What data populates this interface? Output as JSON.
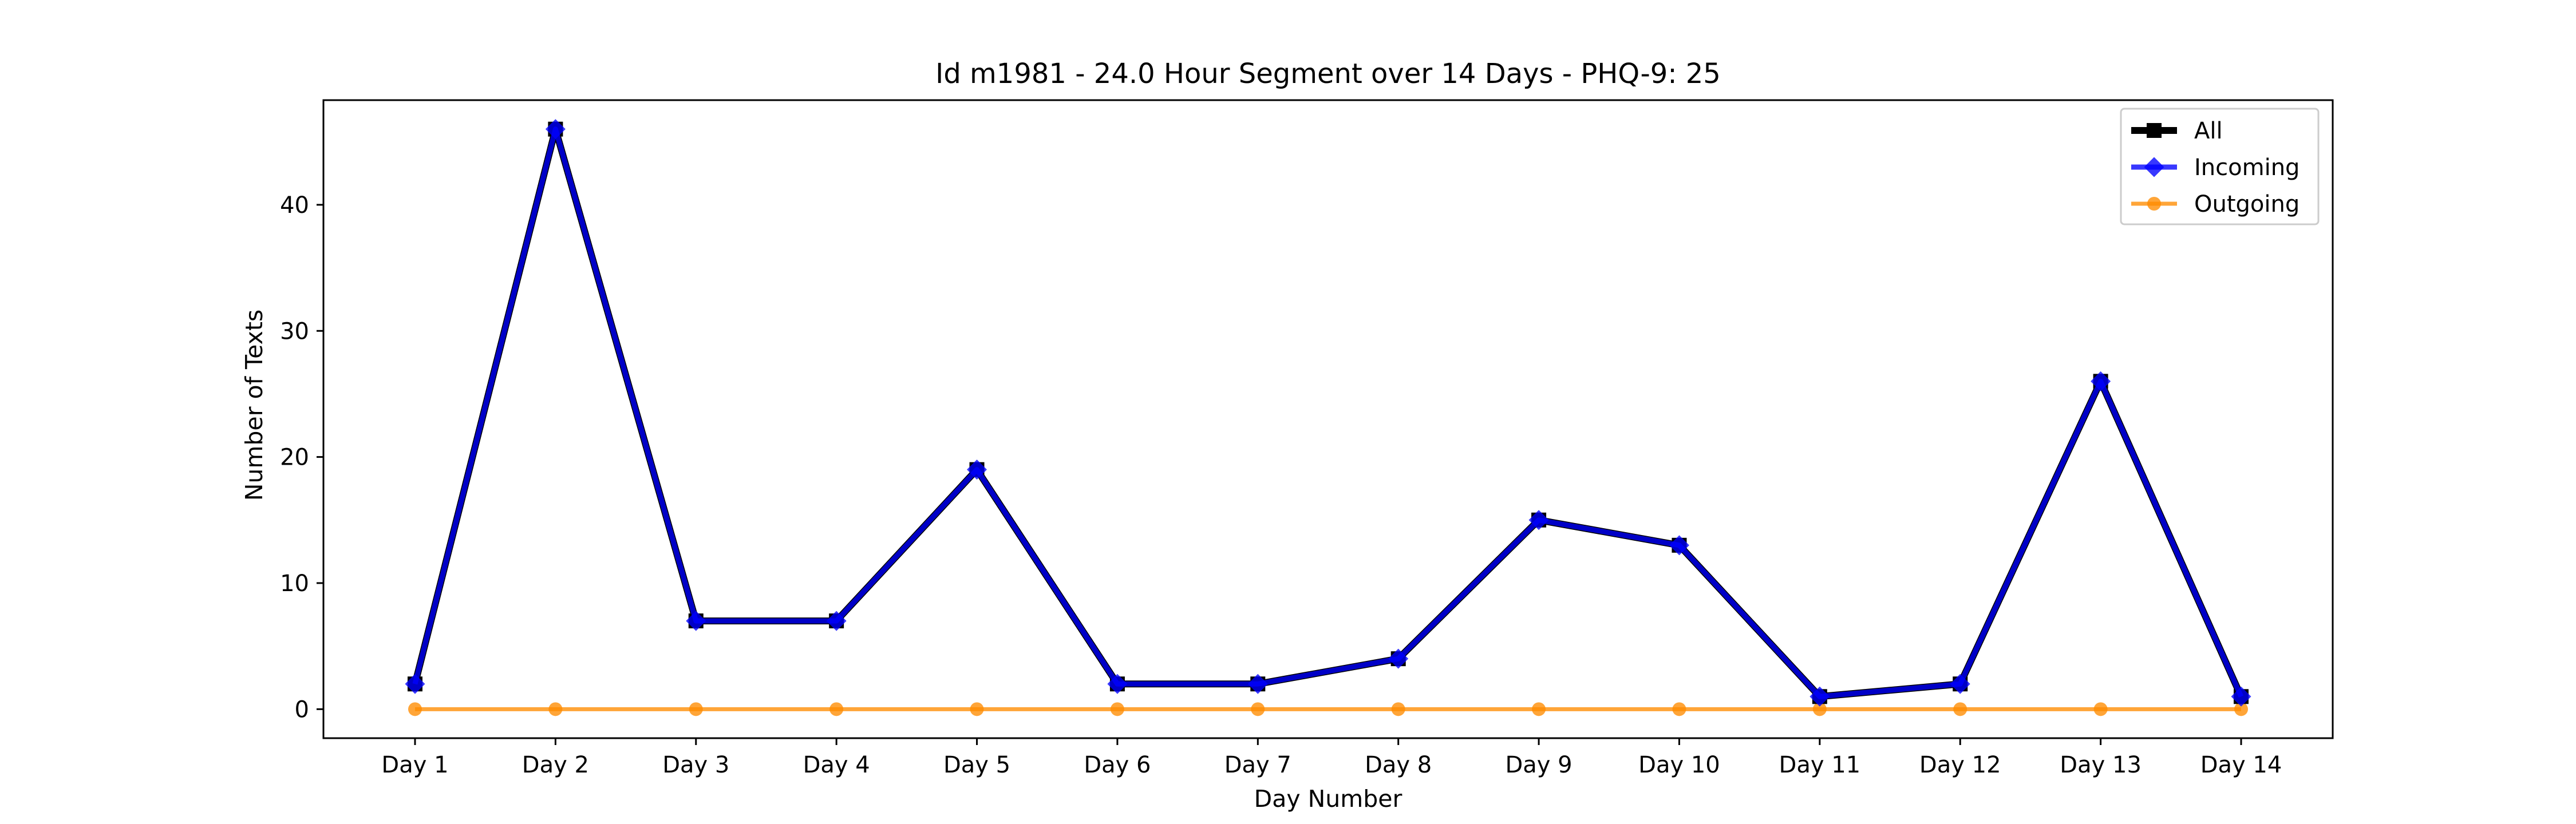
{
  "chart_data": {
    "type": "line",
    "title": "Id m1981 - 24.0 Hour Segment over 14 Days - PHQ-9: 25",
    "xlabel": "Day Number",
    "ylabel": "Number of Texts",
    "categories": [
      "Day 1",
      "Day 2",
      "Day 3",
      "Day 4",
      "Day 5",
      "Day 6",
      "Day 7",
      "Day 8",
      "Day 9",
      "Day 10",
      "Day 11",
      "Day 12",
      "Day 13",
      "Day 14"
    ],
    "ylim": [
      -2.3,
      48.3
    ],
    "yticks": [
      0,
      10,
      20,
      30,
      40
    ],
    "grid": false,
    "legend_position": "top-right",
    "series": [
      {
        "name": "All",
        "color": "#000000",
        "marker": "square",
        "values": [
          2,
          46,
          7,
          7,
          19,
          2,
          2,
          4,
          15,
          13,
          1,
          2,
          26,
          1
        ]
      },
      {
        "name": "Incoming",
        "color": "#0000ff",
        "marker": "diamond",
        "values": [
          2,
          46,
          7,
          7,
          19,
          2,
          2,
          4,
          15,
          13,
          1,
          2,
          26,
          1
        ]
      },
      {
        "name": "Outgoing",
        "color": "#ff8c00",
        "marker": "circle",
        "values": [
          0,
          0,
          0,
          0,
          0,
          0,
          0,
          0,
          0,
          0,
          0,
          0,
          0,
          0
        ]
      }
    ]
  }
}
